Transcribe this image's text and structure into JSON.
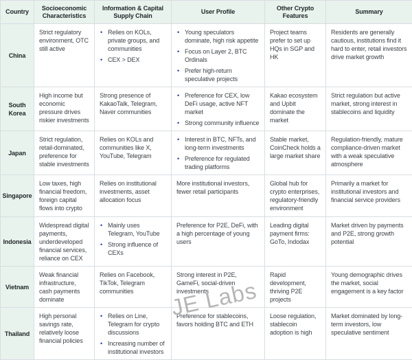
{
  "colors": {
    "header_bg": "#e7f3ec",
    "country_bg": "#e7f3ec",
    "border": "#d9dde2",
    "text": "#3a3f44",
    "heading": "#23272b",
    "bullet": "#1f3ca6",
    "watermark": "#b6b6b6"
  },
  "watermark": {
    "text": "JE Labs"
  },
  "table": {
    "columns": [
      {
        "label": "Country"
      },
      {
        "label": "Socioeconomic Characteristics"
      },
      {
        "label": "Information & Capital Supply Chain"
      },
      {
        "label": "User Profile"
      },
      {
        "label": "Other Crypto Features"
      },
      {
        "label": "Summary"
      }
    ],
    "rows": [
      {
        "country": "China",
        "cells": [
          {
            "text": "Strict regulatory environment, OTC still active"
          },
          {
            "bullets": [
              "Relies on KOLs, private groups, and communities",
              "CEX > DEX"
            ]
          },
          {
            "bullets": [
              "Young speculators dominate, high risk appetite",
              "Focus on Layer 2, BTC Ordinals",
              "Prefer high-return speculative projects"
            ]
          },
          {
            "text": "Project teams prefer to set up HQs in SGP and HK"
          },
          {
            "text": "Residents are generally cautious, institutions find it hard to enter, retail investors drive market growth"
          }
        ]
      },
      {
        "country": "South Korea",
        "cells": [
          {
            "text": "High income but economic pressure drives riskier investments"
          },
          {
            "text": "Strong presence of KakaoTalk, Telegram, Naver communities"
          },
          {
            "bullets": [
              "Preference for CEX, low DeFi usage, active NFT market",
              "Strong community influence"
            ]
          },
          {
            "text": "Kakao ecosystem and Upbit dominate the market"
          },
          {
            "text": "Strict regulation but active market, strong interest in stablecoins and liquidity"
          }
        ]
      },
      {
        "country": "Japan",
        "cells": [
          {
            "text": "Strict regulation, retail-dominated, preference for stable investments"
          },
          {
            "text": "Relies on KOLs and communities like X, YouTube, Telegram"
          },
          {
            "bullets": [
              "Interest in BTC, NFTs, and long-term investments",
              "Preference for regulated trading platforms"
            ]
          },
          {
            "text": "Stable market, CoinCheck holds a large market share"
          },
          {
            "text": "Regulation-friendly, mature compliance-driven market with a weak speculative atmosphere"
          }
        ]
      },
      {
        "country": "Singapore",
        "cells": [
          {
            "text": "Low taxes, high financial freedom, foreign capital flows into crypto"
          },
          {
            "text": "Relies on institutional investments, asset allocation focus"
          },
          {
            "text": "More institutional investors, fewer retail participants"
          },
          {
            "text": "Global hub for crypto enterprises, regulatory-friendly environment"
          },
          {
            "text": "Primarily a market for institutional investors and financial service providers"
          }
        ]
      },
      {
        "country": "Indonesia",
        "cells": [
          {
            "text": "Widespread digital payments, underdeveloped financial services, reliance on CEX"
          },
          {
            "bullets": [
              "Mainly uses Telegram, YouTube",
              "Strong influence of CEXs"
            ]
          },
          {
            "text": "Preference for P2E, DeFi, with a high percentage of young users"
          },
          {
            "text": "Leading digital payment firms: GoTo, Indodax"
          },
          {
            "text": "Market driven by payments and P2E, strong growth potential"
          }
        ]
      },
      {
        "country": "Vietnam",
        "cells": [
          {
            "text": "Weak financial infrastructure, cash payments dominate"
          },
          {
            "text": "Relies on Facebook, TikTok, Telegram communities"
          },
          {
            "text": "Strong interest in P2E, GameFi, social-driven investments"
          },
          {
            "text": "Rapid development, thriving P2E projects"
          },
          {
            "text": "Young demographic drives the market, social engagement is a key factor"
          }
        ]
      },
      {
        "country": "Thailand",
        "cells": [
          {
            "text": "High personal savings rate, relatively loose financial policies"
          },
          {
            "bullets": [
              "Relies on Line, Telegram for crypto discussions",
              "Increasing number of institutional investors"
            ]
          },
          {
            "text": "Preference for stablecoins, favors holding BTC and ETH"
          },
          {
            "text": "Loose regulation, stablecoin adoption is high"
          },
          {
            "text": "Market dominated by long-term investors, low speculative sentiment"
          }
        ]
      }
    ]
  }
}
